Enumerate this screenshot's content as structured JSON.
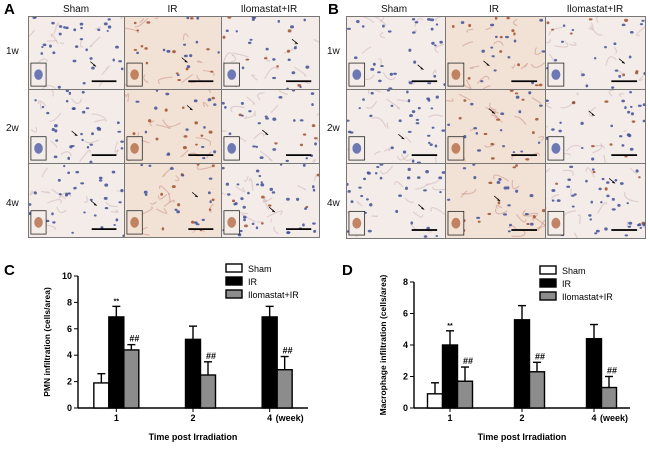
{
  "figure": {
    "panel_a": {
      "letter": "A",
      "columns": [
        "Sham",
        "IR",
        "Ilomastat+IR"
      ],
      "rows": [
        "1w",
        "2w",
        "4w"
      ]
    },
    "panel_b": {
      "letter": "B",
      "columns": [
        "Sham",
        "IR",
        "Ilomastat+IR"
      ],
      "rows": [
        "1w",
        "2w",
        "4w"
      ]
    },
    "panel_c": {
      "letter": "C"
    },
    "panel_d": {
      "letter": "D"
    }
  },
  "chart_data": [
    {
      "id": "C",
      "type": "bar",
      "ylabel": "PMN infiltration (cells/area)",
      "xlabel": "Time post Irradiation",
      "categories": [
        "1",
        "2",
        "4"
      ],
      "x_unit_suffix": "(week)",
      "ylim": [
        0,
        10
      ],
      "yticks": [
        0,
        2,
        4,
        6,
        8,
        10
      ],
      "legend_position": "top-right",
      "series": [
        {
          "name": "Sham",
          "color": "#ffffff",
          "values": [
            1.9,
            null,
            null
          ],
          "errors": [
            0.7,
            null,
            null
          ]
        },
        {
          "name": "IR",
          "color": "#000000",
          "values": [
            6.9,
            5.2,
            6.9
          ],
          "errors": [
            0.8,
            1.0,
            0.8
          ]
        },
        {
          "name": "Ilomastat+IR",
          "color": "#8c8c8c",
          "values": [
            4.4,
            2.5,
            2.9
          ],
          "errors": [
            0.4,
            1.0,
            1.0
          ]
        }
      ],
      "annotations": [
        {
          "series": "IR",
          "category": "1",
          "text": "**"
        },
        {
          "series": "Ilomastat+IR",
          "category": "1",
          "text": "##"
        },
        {
          "series": "Ilomastat+IR",
          "category": "2",
          "text": "##"
        },
        {
          "series": "Ilomastat+IR",
          "category": "4",
          "text": "##"
        }
      ]
    },
    {
      "id": "D",
      "type": "bar",
      "ylabel": "Macrophage infiltration (cells/area)",
      "xlabel": "Time post Irradiation",
      "categories": [
        "1",
        "2",
        "4"
      ],
      "x_unit_suffix": "(week)",
      "ylim": [
        0,
        8
      ],
      "yticks": [
        0,
        2,
        4,
        6,
        8
      ],
      "legend_position": "top-right",
      "series": [
        {
          "name": "Sham",
          "color": "#ffffff",
          "values": [
            0.9,
            null,
            null
          ],
          "errors": [
            0.7,
            null,
            null
          ]
        },
        {
          "name": "IR",
          "color": "#000000",
          "values": [
            4.0,
            5.6,
            4.4
          ],
          "errors": [
            0.9,
            0.9,
            0.9
          ]
        },
        {
          "name": "Ilomastat+IR",
          "color": "#8c8c8c",
          "values": [
            1.7,
            2.3,
            1.3
          ],
          "errors": [
            0.9,
            0.6,
            0.7
          ]
        }
      ],
      "annotations": [
        {
          "series": "IR",
          "category": "1",
          "text": "**"
        },
        {
          "series": "Ilomastat+IR",
          "category": "1",
          "text": "##"
        },
        {
          "series": "Ilomastat+IR",
          "category": "2",
          "text": "##"
        },
        {
          "series": "Ilomastat+IR",
          "category": "4",
          "text": "##"
        }
      ]
    }
  ]
}
